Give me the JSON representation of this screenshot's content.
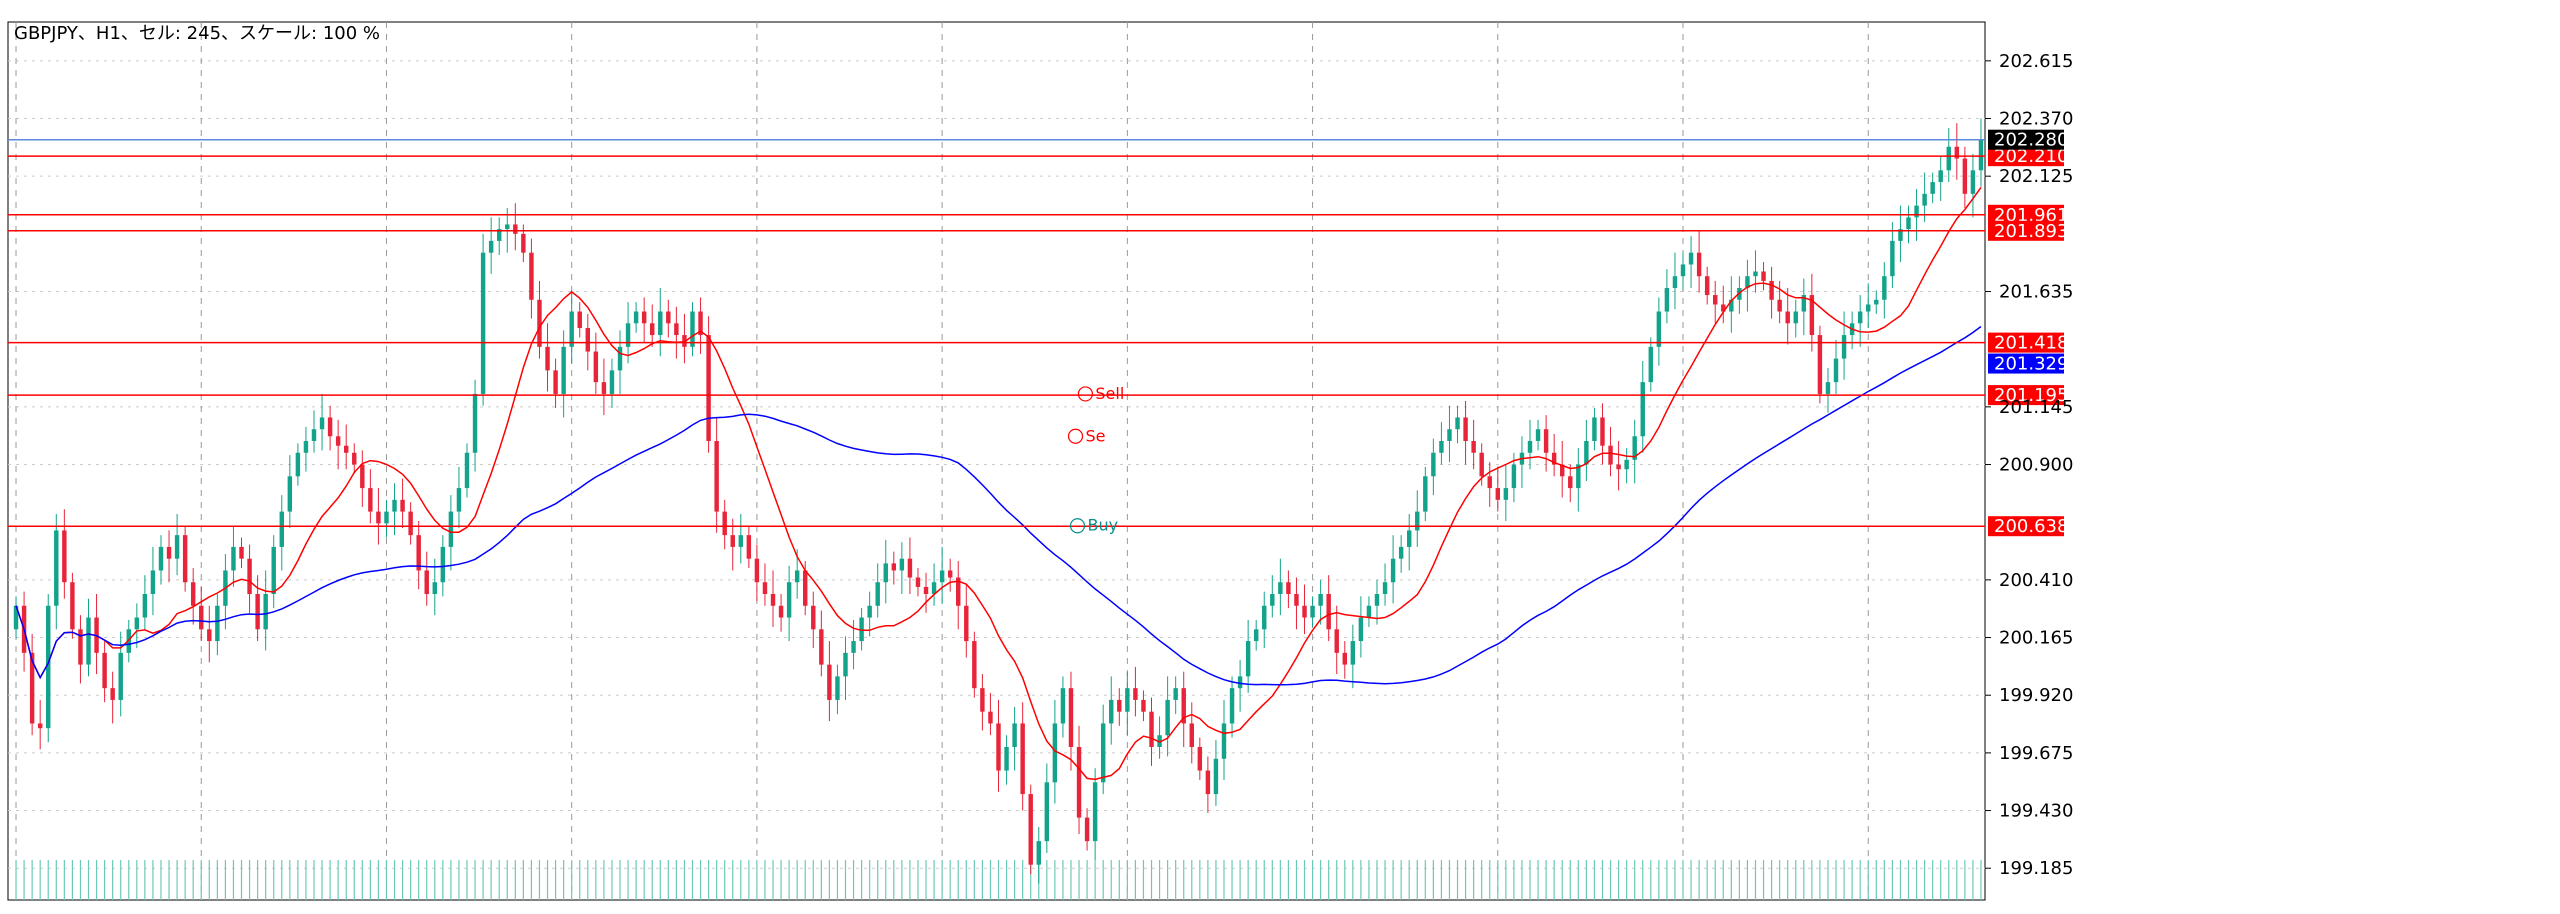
{
  "header": {
    "title": "GBPJPY、H1、セル: 245、スケール: 100 %"
  },
  "chart_data": {
    "type": "candlestick",
    "symbol": "GBPJPY",
    "timeframe": "H1",
    "ylim": [
      199.05,
      202.78
    ],
    "y_ticks": [
      "202.615",
      "202.370",
      "202.125",
      "201.635",
      "201.145",
      "200.900",
      "200.410",
      "200.165",
      "199.920",
      "199.675",
      "199.430",
      "199.185"
    ],
    "current_price": {
      "value": 202.28,
      "label": "202.280",
      "color": "#000000",
      "line_color": "#5b8bd8"
    },
    "levels": [
      {
        "value": 202.21,
        "label": "202.210",
        "color": "#ff0000"
      },
      {
        "value": 201.961,
        "label": "201.961",
        "color": "#ff0000"
      },
      {
        "value": 201.893,
        "label": "201.893",
        "color": "#ff0000"
      },
      {
        "value": 201.418,
        "label": "201.418",
        "color": "#ff0000"
      },
      {
        "value": 201.195,
        "label": "201.195",
        "color": "#ff0000"
      },
      {
        "value": 200.638,
        "label": "200.638",
        "color": "#ff0000"
      }
    ],
    "ma_label": {
      "value": 201.329,
      "label": "201.329",
      "color": "#0000ff"
    },
    "signals": [
      {
        "text": "Sell",
        "price": 201.2,
        "x": 0.548,
        "color": "#ff0000"
      },
      {
        "text": "Se",
        "price": 201.02,
        "x": 0.543,
        "color": "#ff0000"
      },
      {
        "text": "Buy",
        "price": 200.64,
        "x": 0.544,
        "color": "#0a8f8f"
      }
    ],
    "close": [
      200.3,
      200.1,
      199.8,
      199.78,
      200.3,
      200.62,
      200.4,
      200.2,
      200.05,
      200.25,
      200.1,
      199.95,
      199.9,
      200.1,
      200.2,
      200.25,
      200.35,
      200.45,
      200.55,
      200.5,
      200.6,
      200.4,
      200.3,
      200.2,
      200.15,
      200.3,
      200.45,
      200.55,
      200.5,
      200.35,
      200.2,
      200.35,
      200.55,
      200.7,
      200.85,
      200.95,
      201.0,
      201.05,
      201.1,
      201.02,
      200.98,
      200.95,
      200.9,
      200.8,
      200.7,
      200.65,
      200.7,
      200.75,
      200.7,
      200.6,
      200.45,
      200.35,
      200.4,
      200.55,
      200.7,
      200.8,
      200.95,
      201.2,
      201.8,
      201.85,
      201.9,
      201.92,
      201.88,
      201.8,
      201.6,
      201.4,
      201.3,
      201.2,
      201.4,
      201.55,
      201.48,
      201.38,
      201.25,
      201.2,
      201.3,
      201.4,
      201.5,
      201.55,
      201.5,
      201.45,
      201.55,
      201.5,
      201.45,
      201.4,
      201.55,
      201.45,
      201.0,
      200.7,
      200.6,
      200.55,
      200.6,
      200.5,
      200.4,
      200.35,
      200.3,
      200.25,
      200.4,
      200.45,
      200.3,
      200.2,
      200.05,
      199.9,
      200.0,
      200.1,
      200.15,
      200.25,
      200.3,
      200.4,
      200.48,
      200.45,
      200.5,
      200.42,
      200.38,
      200.35,
      200.4,
      200.45,
      200.42,
      200.3,
      200.15,
      199.95,
      199.85,
      199.8,
      199.6,
      199.7,
      199.8,
      199.5,
      199.2,
      199.3,
      199.55,
      199.8,
      199.95,
      199.7,
      199.4,
      199.3,
      199.55,
      199.8,
      199.9,
      199.85,
      199.95,
      199.9,
      199.85,
      199.7,
      199.75,
      199.9,
      199.95,
      199.8,
      199.7,
      199.6,
      199.5,
      199.65,
      199.8,
      199.95,
      200.0,
      200.15,
      200.2,
      200.3,
      200.35,
      200.4,
      200.35,
      200.3,
      200.25,
      200.3,
      200.35,
      200.2,
      200.1,
      200.05,
      200.15,
      200.25,
      200.3,
      200.35,
      200.4,
      200.5,
      200.55,
      200.62,
      200.7,
      200.85,
      200.95,
      201.0,
      201.05,
      201.1,
      201.0,
      200.95,
      200.85,
      200.8,
      200.75,
      200.8,
      200.9,
      200.95,
      201.0,
      201.05,
      200.95,
      200.9,
      200.85,
      200.8,
      200.9,
      201.0,
      201.1,
      200.98,
      200.9,
      200.88,
      200.92,
      201.02,
      201.25,
      201.4,
      201.55,
      201.65,
      201.7,
      201.75,
      201.8,
      201.7,
      201.62,
      201.58,
      201.55,
      201.6,
      201.65,
      201.7,
      201.72,
      201.68,
      201.6,
      201.55,
      201.5,
      201.55,
      201.62,
      201.45,
      201.2,
      201.25,
      201.35,
      201.45,
      201.5,
      201.55,
      201.58,
      201.6,
      201.7,
      201.85,
      201.9,
      201.95,
      202.0,
      202.05,
      202.1,
      202.15,
      202.25,
      202.2,
      202.05,
      202.15,
      202.28
    ]
  }
}
